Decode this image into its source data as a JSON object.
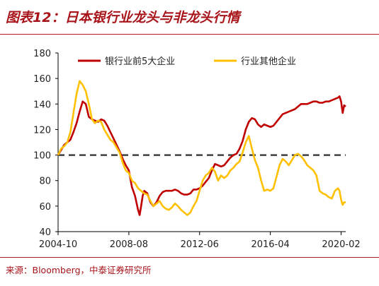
{
  "header": {
    "title": "图表12：日本银行业龙头与非龙头行情"
  },
  "footer": {
    "source": "来源：Bloomberg，中泰证券研究所"
  },
  "colors": {
    "accent": "#a8141a",
    "series_top5": "#c00000",
    "series_other": "#ffc000",
    "baseline": "#404040"
  },
  "chart_data": {
    "type": "line",
    "title": "",
    "xlabel": "",
    "ylabel": "",
    "ylim": [
      40,
      180
    ],
    "yticks": [
      40,
      60,
      80,
      100,
      120,
      140,
      160,
      180
    ],
    "xlim": [
      "2004-10",
      "2020-05"
    ],
    "xticks": [
      "2004-10",
      "2008-08",
      "2012-06",
      "2016-04",
      "2020-02"
    ],
    "reference_line": {
      "y": 100,
      "style": "dashed"
    },
    "legend_position": "top",
    "grid": false,
    "series": [
      {
        "name": "银行业前5大企业",
        "color": "#c00000",
        "points": [
          [
            "2004-10",
            100
          ],
          [
            "2004-12",
            104
          ],
          [
            "2005-02",
            108
          ],
          [
            "2005-04",
            110
          ],
          [
            "2005-06",
            112
          ],
          [
            "2005-08",
            118
          ],
          [
            "2005-10",
            125
          ],
          [
            "2005-12",
            134
          ],
          [
            "2006-02",
            142
          ],
          [
            "2006-04",
            140
          ],
          [
            "2006-06",
            130
          ],
          [
            "2006-08",
            128
          ],
          [
            "2006-10",
            127
          ],
          [
            "2006-12",
            126
          ],
          [
            "2007-02",
            128
          ],
          [
            "2007-04",
            127
          ],
          [
            "2007-06",
            123
          ],
          [
            "2007-08",
            118
          ],
          [
            "2007-10",
            113
          ],
          [
            "2007-12",
            108
          ],
          [
            "2008-02",
            103
          ],
          [
            "2008-04",
            97
          ],
          [
            "2008-06",
            92
          ],
          [
            "2008-08",
            88
          ],
          [
            "2008-10",
            75
          ],
          [
            "2008-12",
            68
          ],
          [
            "2009-02",
            57
          ],
          [
            "2009-03",
            53
          ],
          [
            "2009-04",
            60
          ],
          [
            "2009-05",
            68
          ],
          [
            "2009-06",
            72
          ],
          [
            "2009-08",
            70
          ],
          [
            "2009-10",
            63
          ],
          [
            "2009-12",
            60
          ],
          [
            "2010-02",
            63
          ],
          [
            "2010-04",
            68
          ],
          [
            "2010-06",
            71
          ],
          [
            "2010-08",
            72
          ],
          [
            "2010-10",
            72
          ],
          [
            "2010-12",
            72
          ],
          [
            "2011-02",
            73
          ],
          [
            "2011-04",
            72
          ],
          [
            "2011-06",
            70
          ],
          [
            "2011-08",
            69
          ],
          [
            "2011-10",
            69
          ],
          [
            "2011-12",
            70
          ],
          [
            "2012-02",
            73
          ],
          [
            "2012-04",
            73
          ],
          [
            "2012-06",
            74
          ],
          [
            "2012-08",
            76
          ],
          [
            "2012-10",
            79
          ],
          [
            "2012-12",
            82
          ],
          [
            "2013-02",
            88
          ],
          [
            "2013-04",
            93
          ],
          [
            "2013-06",
            92
          ],
          [
            "2013-08",
            91
          ],
          [
            "2013-10",
            92
          ],
          [
            "2013-12",
            95
          ],
          [
            "2014-02",
            98
          ],
          [
            "2014-04",
            100
          ],
          [
            "2014-06",
            101
          ],
          [
            "2014-08",
            105
          ],
          [
            "2014-10",
            111
          ],
          [
            "2014-12",
            120
          ],
          [
            "2015-02",
            126
          ],
          [
            "2015-04",
            129
          ],
          [
            "2015-06",
            128
          ],
          [
            "2015-08",
            124
          ],
          [
            "2015-10",
            122
          ],
          [
            "2015-12",
            124
          ],
          [
            "2016-02",
            123
          ],
          [
            "2016-04",
            122
          ],
          [
            "2016-06",
            123
          ],
          [
            "2016-08",
            126
          ],
          [
            "2016-10",
            129
          ],
          [
            "2016-12",
            132
          ],
          [
            "2017-02",
            133
          ],
          [
            "2017-04",
            134
          ],
          [
            "2017-06",
            135
          ],
          [
            "2017-08",
            136
          ],
          [
            "2017-10",
            138
          ],
          [
            "2017-12",
            140
          ],
          [
            "2018-02",
            140
          ],
          [
            "2018-04",
            140
          ],
          [
            "2018-06",
            141
          ],
          [
            "2018-08",
            142
          ],
          [
            "2018-10",
            142
          ],
          [
            "2018-12",
            141
          ],
          [
            "2019-02",
            141
          ],
          [
            "2019-04",
            142
          ],
          [
            "2019-06",
            142
          ],
          [
            "2019-08",
            143
          ],
          [
            "2019-10",
            144
          ],
          [
            "2019-12",
            145
          ],
          [
            "2020-01",
            146
          ],
          [
            "2020-02",
            142
          ],
          [
            "2020-03",
            133
          ],
          [
            "2020-04",
            139
          ],
          [
            "2020-05",
            138
          ]
        ]
      },
      {
        "name": "行业其他企业",
        "color": "#ffc000",
        "points": [
          [
            "2004-10",
            100
          ],
          [
            "2004-12",
            105
          ],
          [
            "2005-02",
            107
          ],
          [
            "2005-04",
            110
          ],
          [
            "2005-06",
            118
          ],
          [
            "2005-08",
            133
          ],
          [
            "2005-10",
            148
          ],
          [
            "2005-12",
            158
          ],
          [
            "2006-02",
            155
          ],
          [
            "2006-04",
            150
          ],
          [
            "2006-06",
            140
          ],
          [
            "2006-08",
            128
          ],
          [
            "2006-10",
            125
          ],
          [
            "2006-12",
            127
          ],
          [
            "2007-02",
            126
          ],
          [
            "2007-04",
            120
          ],
          [
            "2007-06",
            116
          ],
          [
            "2007-08",
            112
          ],
          [
            "2007-10",
            110
          ],
          [
            "2007-12",
            106
          ],
          [
            "2008-02",
            102
          ],
          [
            "2008-04",
            94
          ],
          [
            "2008-06",
            88
          ],
          [
            "2008-08",
            86
          ],
          [
            "2008-10",
            80
          ],
          [
            "2008-12",
            78
          ],
          [
            "2009-02",
            74
          ],
          [
            "2009-04",
            72
          ],
          [
            "2009-06",
            70
          ],
          [
            "2009-08",
            69
          ],
          [
            "2009-10",
            64
          ],
          [
            "2009-12",
            60
          ],
          [
            "2010-02",
            62
          ],
          [
            "2010-04",
            64
          ],
          [
            "2010-06",
            60
          ],
          [
            "2010-08",
            58
          ],
          [
            "2010-10",
            57
          ],
          [
            "2010-12",
            59
          ],
          [
            "2011-02",
            62
          ],
          [
            "2011-04",
            60
          ],
          [
            "2011-06",
            57
          ],
          [
            "2011-08",
            55
          ],
          [
            "2011-10",
            53
          ],
          [
            "2011-12",
            55
          ],
          [
            "2012-02",
            60
          ],
          [
            "2012-04",
            64
          ],
          [
            "2012-06",
            72
          ],
          [
            "2012-08",
            80
          ],
          [
            "2012-10",
            84
          ],
          [
            "2012-12",
            86
          ],
          [
            "2013-02",
            90
          ],
          [
            "2013-04",
            87
          ],
          [
            "2013-06",
            80
          ],
          [
            "2013-08",
            84
          ],
          [
            "2013-10",
            82
          ],
          [
            "2013-12",
            84
          ],
          [
            "2014-02",
            88
          ],
          [
            "2014-04",
            90
          ],
          [
            "2014-06",
            93
          ],
          [
            "2014-08",
            95
          ],
          [
            "2014-10",
            102
          ],
          [
            "2014-12",
            110
          ],
          [
            "2015-02",
            115
          ],
          [
            "2015-04",
            105
          ],
          [
            "2015-06",
            96
          ],
          [
            "2015-08",
            90
          ],
          [
            "2015-10",
            80
          ],
          [
            "2015-12",
            72
          ],
          [
            "2016-02",
            73
          ],
          [
            "2016-04",
            72
          ],
          [
            "2016-06",
            74
          ],
          [
            "2016-08",
            83
          ],
          [
            "2016-10",
            92
          ],
          [
            "2016-12",
            97
          ],
          [
            "2017-02",
            95
          ],
          [
            "2017-04",
            92
          ],
          [
            "2017-06",
            96
          ],
          [
            "2017-08",
            100
          ],
          [
            "2017-10",
            101
          ],
          [
            "2017-12",
            99
          ],
          [
            "2018-02",
            96
          ],
          [
            "2018-04",
            92
          ],
          [
            "2018-06",
            90
          ],
          [
            "2018-08",
            88
          ],
          [
            "2018-10",
            84
          ],
          [
            "2018-12",
            72
          ],
          [
            "2019-02",
            70
          ],
          [
            "2019-04",
            69
          ],
          [
            "2019-06",
            67
          ],
          [
            "2019-08",
            66
          ],
          [
            "2019-10",
            72
          ],
          [
            "2019-12",
            74
          ],
          [
            "2020-01",
            72
          ],
          [
            "2020-02",
            65
          ],
          [
            "2020-03",
            61
          ],
          [
            "2020-04",
            63
          ],
          [
            "2020-05",
            63
          ]
        ]
      }
    ]
  }
}
